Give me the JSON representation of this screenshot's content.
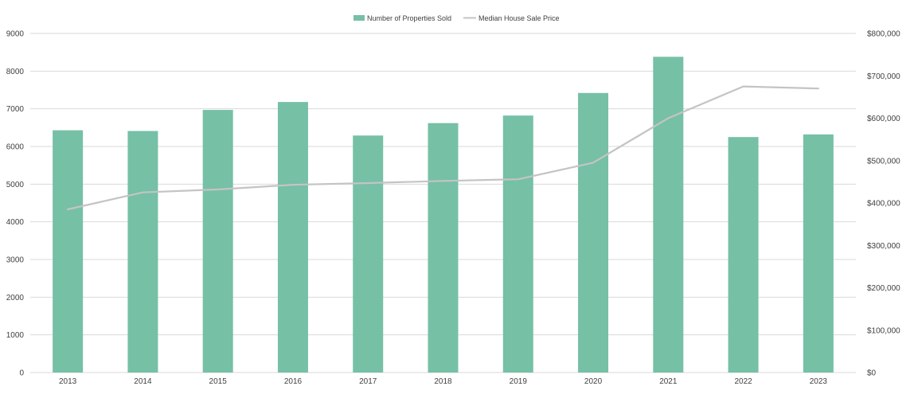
{
  "chart_data": {
    "type": "bar",
    "categories": [
      "2013",
      "2014",
      "2015",
      "2016",
      "2017",
      "2018",
      "2019",
      "2020",
      "2021",
      "2022",
      "2023"
    ],
    "series": [
      {
        "name": "Number of Properties Sold",
        "type": "bar",
        "axis": "left",
        "color": "#76c0a6",
        "values": [
          6430,
          6410,
          6970,
          7180,
          6290,
          6620,
          6820,
          7420,
          8380,
          6250,
          6320
        ]
      },
      {
        "name": "Median House Sale Price",
        "type": "line",
        "axis": "right",
        "color": "#c4c4c4",
        "values": [
          385000,
          425000,
          432000,
          443000,
          447000,
          452000,
          456000,
          495000,
          600000,
          675000,
          670000
        ]
      }
    ],
    "y_left": {
      "lim": [
        0,
        9000
      ],
      "ticks": [
        0,
        1000,
        2000,
        3000,
        4000,
        5000,
        6000,
        7000,
        8000,
        9000
      ],
      "tick_labels": [
        "0",
        "1000",
        "2000",
        "3000",
        "4000",
        "5000",
        "6000",
        "7000",
        "8000",
        "9000"
      ]
    },
    "y_right": {
      "lim": [
        0,
        800000
      ],
      "ticks": [
        0,
        100000,
        200000,
        300000,
        400000,
        500000,
        600000,
        700000,
        800000
      ],
      "tick_labels": [
        "$0",
        "$100,000",
        "$200,000",
        "$300,000",
        "$400,000",
        "$500,000",
        "$600,000",
        "$700,000",
        "$800,000"
      ]
    },
    "grid": true,
    "legend_position": "top-center",
    "gridline_color": "#d9d9d9",
    "text_color": "#404040"
  }
}
